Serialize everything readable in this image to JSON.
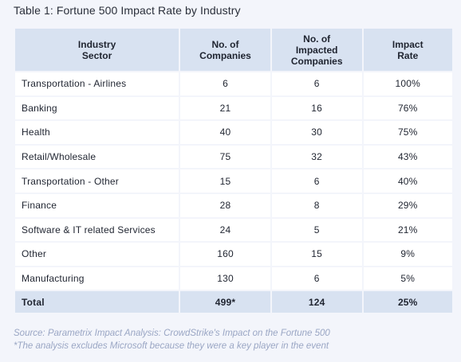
{
  "title": "Table 1: Fortune 500  Impact Rate by Industry",
  "table": {
    "headers": [
      [
        "Industry",
        "Sector"
      ],
      [
        "No. of",
        "Companies"
      ],
      [
        "No. of",
        "Impacted",
        "Companies"
      ],
      [
        "Impact",
        "Rate"
      ]
    ],
    "rows": [
      [
        "Transportation - Airlines",
        "6",
        "6",
        "100%"
      ],
      [
        "Banking",
        "21",
        "16",
        "76%"
      ],
      [
        "Health",
        "40",
        "30",
        "75%"
      ],
      [
        "Retail/Wholesale",
        "75",
        "32",
        "43%"
      ],
      [
        "Transportation - Other",
        "15",
        "6",
        "40%"
      ],
      [
        "Finance",
        "28",
        "8",
        "29%"
      ],
      [
        "Software & IT related Services",
        "24",
        "5",
        "21%"
      ],
      [
        "Other",
        "160",
        "15",
        "9%"
      ],
      [
        "Manufacturing",
        "130",
        "6",
        "5%"
      ]
    ],
    "total": [
      "Total",
      "499*",
      "124",
      "25%"
    ]
  },
  "source": "Source: Parametrix Impact Analysis: CrowdStrike's Impact on the Fortune 500",
  "footnote": "*The analysis excludes Microsoft because they were a key player in the event"
}
